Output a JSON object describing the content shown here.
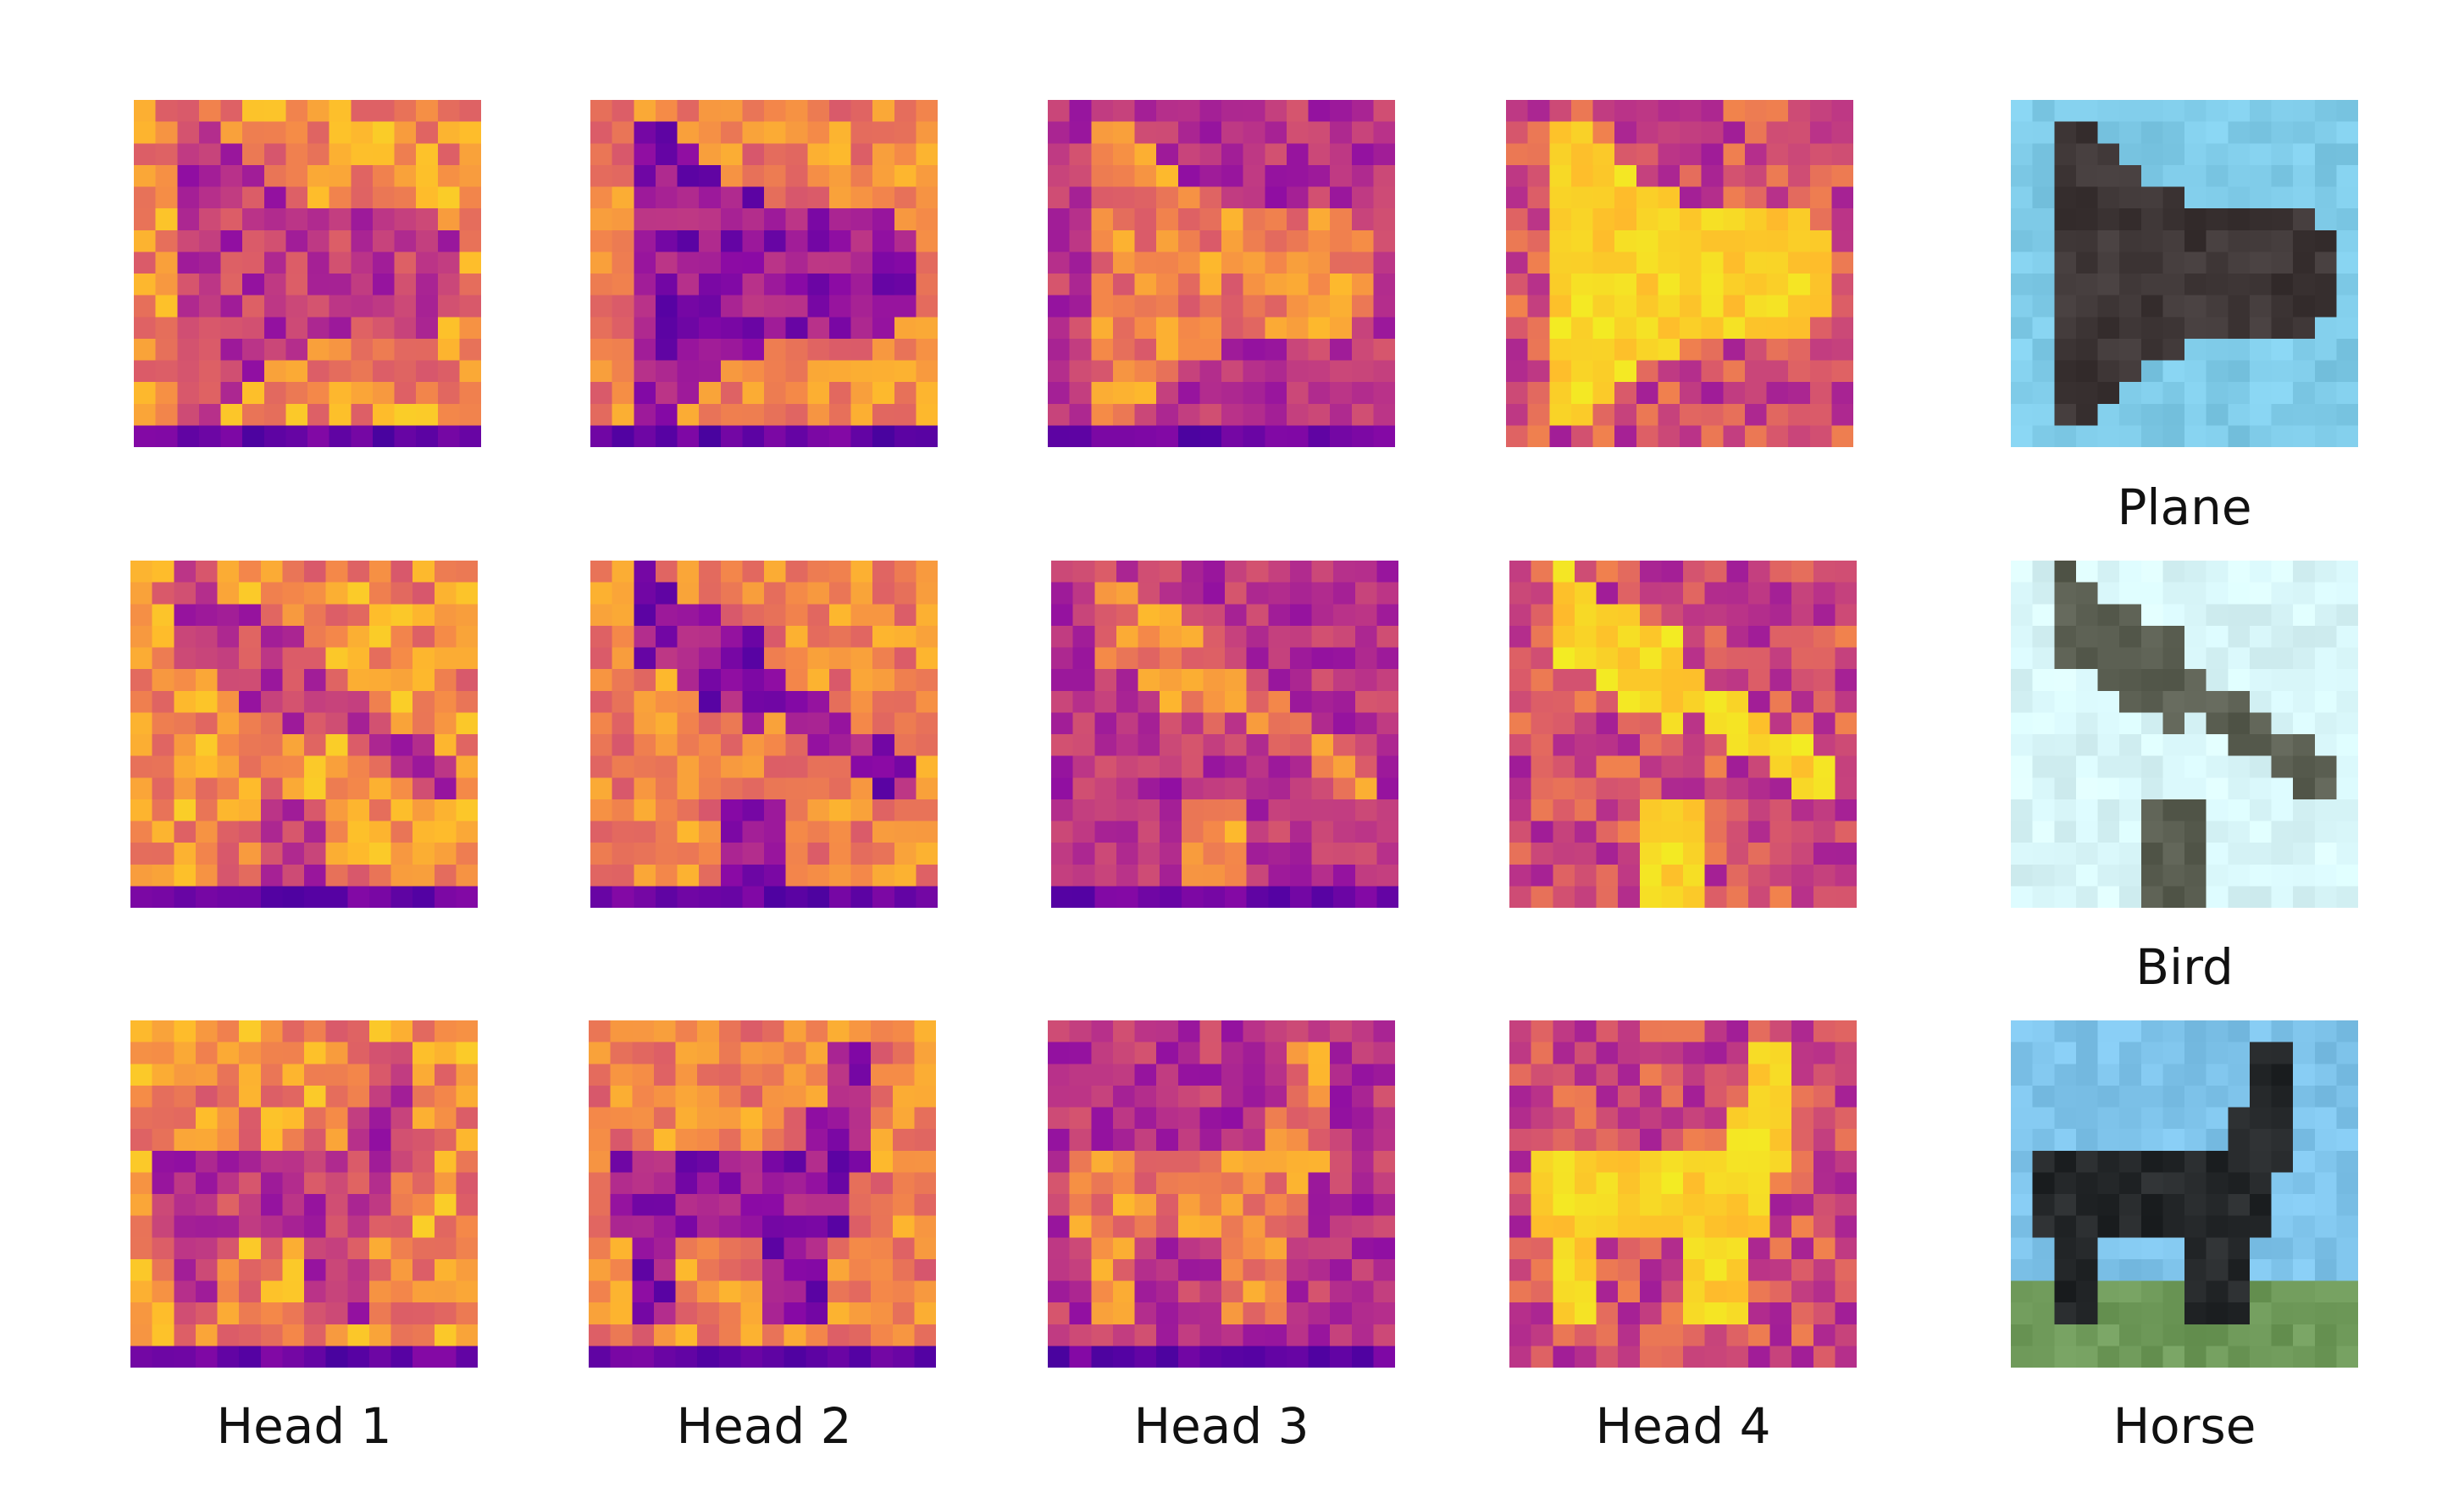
{
  "figure": {
    "head_labels": [
      "Head 1",
      "Head 2",
      "Head 3",
      "Head 4"
    ],
    "rows": [
      {
        "class_label": "Plane",
        "image_icon": "airplane-thumbnail",
        "image_palette": {
          "sky": "#7fcbe8",
          "object": "#3e3636"
        }
      },
      {
        "class_label": "Bird",
        "image_icon": "bird-thumbnail",
        "image_palette": {
          "sky": "#d8f6f9",
          "object": "#5b5f52"
        }
      },
      {
        "class_label": "Horse",
        "image_icon": "horse-thumbnail",
        "image_palette": {
          "sky": "#7ec3ea",
          "object": "#25282a",
          "ground": "#6f9a5a"
        }
      }
    ],
    "colormap": "plasma",
    "grid_resolution": 16
  }
}
